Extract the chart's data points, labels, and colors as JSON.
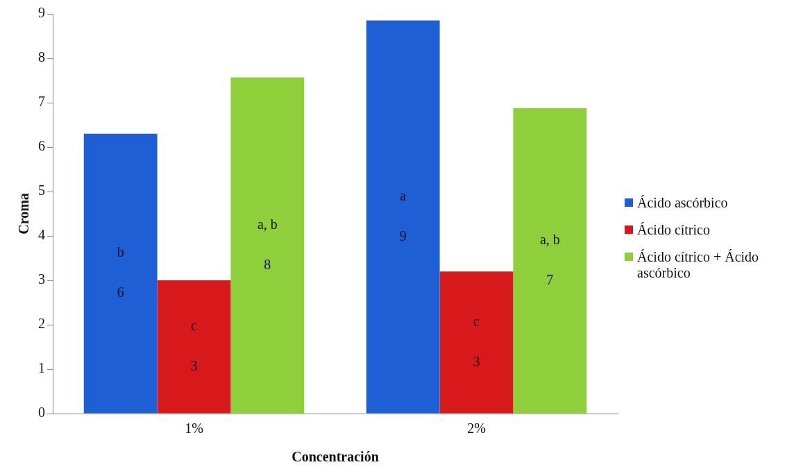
{
  "chart_data": {
    "type": "bar",
    "xlabel": "Concentración",
    "ylabel": "Croma",
    "categories": [
      "1%",
      "2%"
    ],
    "series": [
      {
        "name": "Ácido ascórbico",
        "color": "#1f5fd6",
        "values": [
          6.3,
          8.85
        ],
        "value_labels": [
          "b\n6",
          "a\n9"
        ]
      },
      {
        "name": "Ácido cítrico",
        "color": "#d8191b",
        "values": [
          3.0,
          3.2
        ],
        "value_labels": [
          "c\n3",
          "c\n3"
        ]
      },
      {
        "name": "Ácido cítrico + Ácido ascórbico",
        "color": "#8fcf3c",
        "values": [
          7.57,
          6.88
        ],
        "value_labels": [
          "a, b\n8",
          "a, b\n7"
        ]
      }
    ],
    "ylim": [
      0,
      9
    ],
    "yticks": [
      0,
      1,
      2,
      3,
      4,
      5,
      6,
      7,
      8,
      9
    ],
    "grid": false,
    "legend": "right"
  }
}
